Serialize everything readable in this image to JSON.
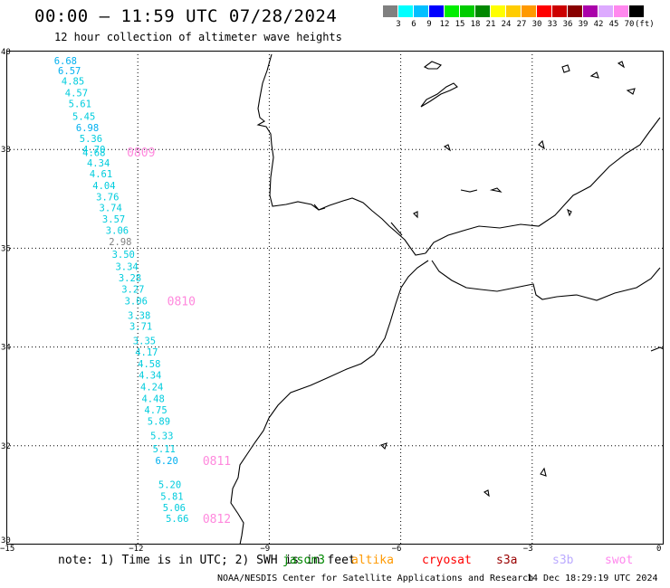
{
  "header": {
    "title": "00:00 – 11:59 UTC 07/28/2024",
    "subtitle": "12 hour collection of altimeter wave heights"
  },
  "color_scale": {
    "unit": "(ft)",
    "colors": [
      "#808080",
      "#00ffff",
      "#00bfff",
      "#0000ff",
      "#00ee00",
      "#00cc00",
      "#008800",
      "#ffff00",
      "#ffcc00",
      "#ff9900",
      "#ff0000",
      "#cc0000",
      "#880000",
      "#aa00aa",
      "#ddaaff",
      "#ff88ee",
      "#000000"
    ],
    "labels": [
      "3",
      "6",
      "9",
      "12",
      "15",
      "18",
      "21",
      "24",
      "27",
      "30",
      "33",
      "36",
      "39",
      "42",
      "45",
      "70"
    ]
  },
  "map": {
    "y_axis": [
      "40",
      "38",
      "36",
      "34",
      "32",
      "30"
    ],
    "x_axis": [
      "−15",
      "−12",
      "−9",
      "−6",
      "−3",
      "0"
    ],
    "track_color": "#00ccdd",
    "track_label_color": "#ff88dd",
    "readings": [
      {
        "v": "6.68",
        "lon": -13.65,
        "lat": 39.8,
        "c": "#00b0f0"
      },
      {
        "v": "6.57",
        "lon": -13.56,
        "lat": 39.6,
        "c": "#00b0f0"
      },
      {
        "v": "4.85",
        "lon": -13.48,
        "lat": 39.39,
        "c": "#00ccdd"
      },
      {
        "v": "4.57",
        "lon": -13.4,
        "lat": 39.15,
        "c": "#00ccdd"
      },
      {
        "v": "5.61",
        "lon": -13.32,
        "lat": 38.93,
        "c": "#00ccdd"
      },
      {
        "v": "5.45",
        "lon": -13.23,
        "lat": 38.67,
        "c": "#00ccdd"
      },
      {
        "v": "6.98",
        "lon": -13.15,
        "lat": 38.44,
        "c": "#00b0f0"
      },
      {
        "v": "5.36",
        "lon": -13.07,
        "lat": 38.22,
        "c": "#00ccdd"
      },
      {
        "v": "4.70",
        "lon": -13.0,
        "lat": 38.0,
        "c": "#00ccdd"
      },
      {
        "v": "4.68",
        "lon": -13.0,
        "lat": 37.94,
        "c": "#00ccdd"
      },
      {
        "v": "4.34",
        "lon": -12.9,
        "lat": 37.73,
        "c": "#00ccdd"
      },
      {
        "v": "4.61",
        "lon": -12.84,
        "lat": 37.51,
        "c": "#00ccdd"
      },
      {
        "v": "4.04",
        "lon": -12.77,
        "lat": 37.27,
        "c": "#00ccdd"
      },
      {
        "v": "3.76",
        "lon": -12.69,
        "lat": 37.04,
        "c": "#00ccdd"
      },
      {
        "v": "3.74",
        "lon": -12.62,
        "lat": 36.82,
        "c": "#00ccdd"
      },
      {
        "v": "3.57",
        "lon": -12.55,
        "lat": 36.59,
        "c": "#00ccdd"
      },
      {
        "v": "3.06",
        "lon": -12.47,
        "lat": 36.36,
        "c": "#00ccdd"
      },
      {
        "v": "2.98",
        "lon": -12.4,
        "lat": 36.14,
        "c": "#808080"
      },
      {
        "v": "3.50",
        "lon": -12.33,
        "lat": 35.88,
        "c": "#00ccdd"
      },
      {
        "v": "3.34",
        "lon": -12.25,
        "lat": 35.63,
        "c": "#00ccdd"
      },
      {
        "v": "3.28",
        "lon": -12.18,
        "lat": 35.4,
        "c": "#00ccdd"
      },
      {
        "v": "3.27",
        "lon": -12.11,
        "lat": 35.17,
        "c": "#00ccdd"
      },
      {
        "v": "3.06",
        "lon": -12.04,
        "lat": 34.94,
        "c": "#00ccdd"
      },
      {
        "v": "3.38",
        "lon": -11.97,
        "lat": 34.64,
        "c": "#00ccdd"
      },
      {
        "v": "3.71",
        "lon": -11.93,
        "lat": 34.42,
        "c": "#00ccdd"
      },
      {
        "v": "3.35",
        "lon": -11.85,
        "lat": 34.13,
        "c": "#00ccdd"
      },
      {
        "v": "4.17",
        "lon": -11.8,
        "lat": 33.9,
        "c": "#00ccdd"
      },
      {
        "v": "4.58",
        "lon": -11.74,
        "lat": 33.66,
        "c": "#00ccdd"
      },
      {
        "v": "4.34",
        "lon": -11.72,
        "lat": 33.43,
        "c": "#00ccdd"
      },
      {
        "v": "4.24",
        "lon": -11.68,
        "lat": 33.2,
        "c": "#00ccdd"
      },
      {
        "v": "4.48",
        "lon": -11.65,
        "lat": 32.96,
        "c": "#00ccdd"
      },
      {
        "v": "4.75",
        "lon": -11.59,
        "lat": 32.73,
        "c": "#00ccdd"
      },
      {
        "v": "5.89",
        "lon": -11.52,
        "lat": 32.5,
        "c": "#00ccdd"
      },
      {
        "v": "5.33",
        "lon": -11.45,
        "lat": 32.21,
        "c": "#00ccdd"
      },
      {
        "v": "5.11",
        "lon": -11.4,
        "lat": 31.94,
        "c": "#00ccdd"
      },
      {
        "v": "6.20",
        "lon": -11.34,
        "lat": 31.7,
        "c": "#00b0f0"
      },
      {
        "v": "5.20",
        "lon": -11.27,
        "lat": 31.22,
        "c": "#00ccdd"
      },
      {
        "v": "5.81",
        "lon": -11.22,
        "lat": 30.98,
        "c": "#00ccdd"
      },
      {
        "v": "5.06",
        "lon": -11.17,
        "lat": 30.75,
        "c": "#00ccdd"
      },
      {
        "v": "5.66",
        "lon": -11.1,
        "lat": 30.53,
        "c": "#00ccdd"
      }
    ],
    "track_labels": [
      {
        "t": "0809",
        "lon": -12.25,
        "lat": 37.95
      },
      {
        "t": "0810",
        "lon": -11.33,
        "lat": 34.94
      },
      {
        "t": "0811",
        "lon": -10.52,
        "lat": 31.7
      },
      {
        "t": "0812",
        "lon": -10.52,
        "lat": 30.53
      }
    ]
  },
  "footer": {
    "note": "note: 1) Time is in UTC; 2) SWH is in feet",
    "satellites": [
      {
        "name": "jason3",
        "color": "#008800",
        "left": 312
      },
      {
        "name": "altika",
        "color": "#ff9900",
        "left": 388
      },
      {
        "name": "cryosat",
        "color": "#ff0000",
        "left": 466
      },
      {
        "name": "s3a",
        "color": "#990000",
        "left": 548
      },
      {
        "name": "s3b",
        "color": "#bbaaff",
        "left": 610
      },
      {
        "name": "swot",
        "color": "#ff88ee",
        "left": 668
      }
    ],
    "credit": "NOAA/NESDIS Center for Satellite Applications and Research",
    "timestamp": "14 Dec 18:29:19 UTC 2024"
  }
}
